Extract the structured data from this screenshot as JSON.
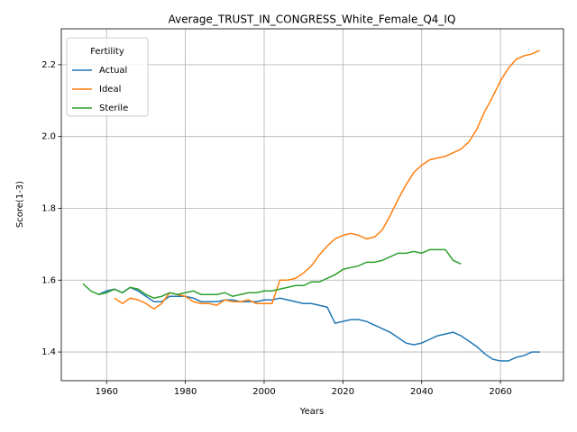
{
  "chart_data": {
    "type": "line",
    "title": "Average_TRUST_IN_CONGRESS_White_Female_Q4_IQ",
    "x_label": "Years",
    "y_label": "Score(1-3)",
    "legend_title": "Fertility",
    "legend": "upper left",
    "grid": true,
    "x": [
      1954,
      1956,
      1958,
      1960,
      1962,
      1964,
      1966,
      1968,
      1970,
      1972,
      1974,
      1976,
      1978,
      1980,
      1982,
      1984,
      1986,
      1988,
      1990,
      1992,
      1994,
      1996,
      1998,
      2000,
      2002,
      2004,
      2006,
      2008,
      2010,
      2012,
      2014,
      2016,
      2018,
      2020,
      2022,
      2024,
      2026,
      2028,
      2030,
      2032,
      2034,
      2036,
      2038,
      2040,
      2042,
      2044,
      2046,
      2048,
      2050,
      2052,
      2054,
      2056,
      2058,
      2060,
      2062,
      2064,
      2066,
      2068,
      2070
    ],
    "series": [
      {
        "name": "Actual",
        "color": "#1f77b4",
        "values": [
          null,
          null,
          1.56,
          1.57,
          1.575,
          1.565,
          1.58,
          1.57,
          1.555,
          1.54,
          1.54,
          1.555,
          1.555,
          1.555,
          1.55,
          1.54,
          1.54,
          1.54,
          1.545,
          1.545,
          1.54,
          1.54,
          1.54,
          1.545,
          1.545,
          1.55,
          1.545,
          1.54,
          1.535,
          1.535,
          1.53,
          1.525,
          1.48,
          1.485,
          1.49,
          1.49,
          1.485,
          1.475,
          1.465,
          1.455,
          1.44,
          1.425,
          1.42,
          1.425,
          1.435,
          1.445,
          1.45,
          1.455,
          1.445,
          1.43,
          1.415,
          1.395,
          1.38,
          1.375,
          1.375,
          1.385,
          1.39,
          1.4,
          1.4
        ]
      },
      {
        "name": "Ideal",
        "color": "#ff7f0e",
        "values": [
          null,
          null,
          null,
          null,
          1.55,
          1.535,
          1.55,
          1.545,
          1.535,
          1.52,
          1.535,
          1.565,
          1.56,
          1.555,
          1.54,
          1.535,
          1.535,
          1.53,
          1.545,
          1.54,
          1.54,
          1.545,
          1.535,
          1.535,
          1.535,
          1.6,
          1.6,
          1.605,
          1.62,
          1.64,
          1.67,
          1.695,
          1.715,
          1.725,
          1.73,
          1.725,
          1.715,
          1.72,
          1.74,
          1.78,
          1.825,
          1.865,
          1.9,
          1.92,
          1.935,
          1.94,
          1.945,
          1.955,
          1.965,
          1.985,
          2.02,
          2.07,
          2.11,
          2.155,
          2.19,
          2.215,
          2.225,
          2.23,
          2.24
        ]
      },
      {
        "name": "Sterile",
        "color": "#2ca02c",
        "values": [
          1.59,
          1.57,
          1.56,
          1.565,
          1.575,
          1.565,
          1.58,
          1.575,
          1.56,
          1.55,
          1.555,
          1.565,
          1.56,
          1.565,
          1.57,
          1.56,
          1.56,
          1.56,
          1.565,
          1.555,
          1.56,
          1.565,
          1.565,
          1.57,
          1.57,
          1.575,
          1.58,
          1.585,
          1.585,
          1.595,
          1.595,
          1.605,
          1.615,
          1.63,
          1.635,
          1.64,
          1.65,
          1.65,
          1.655,
          1.665,
          1.675,
          1.675,
          1.68,
          1.675,
          1.685,
          1.685,
          1.685,
          1.655,
          1.645,
          null,
          null,
          null,
          null,
          null,
          null,
          null,
          null,
          null,
          null
        ]
      }
    ],
    "xlim": [
      1948.5,
      2076
    ],
    "xticks": [
      1960,
      1980,
      2000,
      2020,
      2040,
      2060
    ],
    "ylim": [
      1.32,
      2.3
    ],
    "yticks": [
      1.4,
      1.6,
      1.8,
      {
        "value": 2,
        "label": "2.0"
      },
      2.2
    ]
  }
}
